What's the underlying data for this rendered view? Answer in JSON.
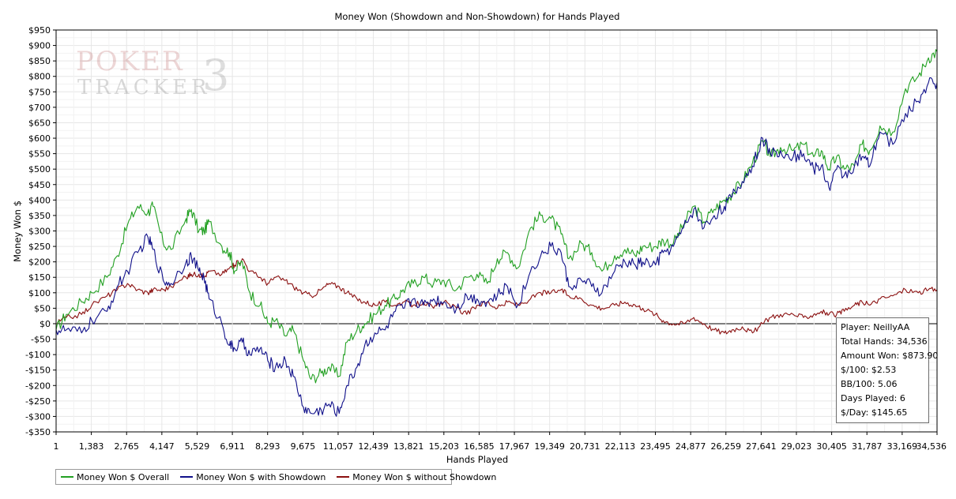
{
  "chart_data": {
    "type": "line",
    "title": "Money Won (Showdown and Non-Showdown) for Hands Played",
    "xlabel": "Hands Played",
    "ylabel": "Money Won $",
    "xlim": [
      1,
      34536
    ],
    "ylim": [
      -350,
      950
    ],
    "y_tick_step": 50,
    "x_ticks": [
      "1",
      "1,383",
      "2,765",
      "4,147",
      "5,529",
      "6,911",
      "8,293",
      "9,675",
      "11,057",
      "12,439",
      "13,821",
      "15,203",
      "16,585",
      "17,967",
      "19,349",
      "20,731",
      "22,113",
      "23,495",
      "24,877",
      "26,259",
      "27,641",
      "29,023",
      "30,405",
      "31,787",
      "33,169",
      "34,536"
    ],
    "grid": true,
    "legend_position": "bottom-left",
    "series": [
      {
        "name": "Money Won $ Overall",
        "color": "#22a022",
        "x": [
          1,
          400,
          1000,
          1400,
          2000,
          2400,
          2800,
          3200,
          3600,
          3800,
          4200,
          4500,
          5100,
          5300,
          5600,
          5800,
          6000,
          6500,
          6800,
          7000,
          7300,
          7600,
          8000,
          8300,
          8600,
          9000,
          9300,
          9700,
          10000,
          10400,
          10700,
          11100,
          11400,
          11800,
          12100,
          12500,
          12900,
          13300,
          13600,
          14000,
          14400,
          14800,
          15200,
          15700,
          16100,
          16500,
          16900,
          17300,
          17700,
          18100,
          18600,
          19000,
          19400,
          19800,
          20100,
          20600,
          21000,
          21400,
          21900,
          22300,
          22700,
          23000,
          23500,
          23800,
          24200,
          24600,
          25000,
          25400,
          25800,
          26200,
          26500,
          26900,
          27300,
          27700,
          28000,
          28400,
          28900,
          29300,
          29700,
          30000,
          30300,
          30600,
          30900,
          31300,
          31600,
          31900,
          32300,
          32800,
          33300,
          33800,
          34200,
          34536
        ],
        "y": [
          -20,
          30,
          70,
          100,
          150,
          220,
          320,
          380,
          360,
          380,
          260,
          240,
          340,
          370,
          300,
          300,
          330,
          250,
          230,
          170,
          200,
          100,
          60,
          0,
          10,
          -40,
          -20,
          -120,
          -180,
          -160,
          -140,
          -170,
          -60,
          -20,
          0,
          30,
          60,
          80,
          110,
          130,
          150,
          130,
          140,
          110,
          150,
          160,
          130,
          210,
          230,
          180,
          310,
          350,
          340,
          290,
          210,
          260,
          230,
          170,
          220,
          240,
          220,
          250,
          250,
          270,
          260,
          320,
          380,
          330,
          370,
          400,
          420,
          460,
          520,
          590,
          540,
          570,
          560,
          580,
          540,
          560,
          500,
          540,
          500,
          510,
          580,
          560,
          640,
          620,
          760,
          800,
          860,
          880
        ]
      },
      {
        "name": "Money Won $ with Showdown",
        "color": "#10108a",
        "x": [
          1,
          400,
          1000,
          1400,
          2000,
          2400,
          2800,
          3200,
          3600,
          3800,
          4200,
          4500,
          5100,
          5300,
          5600,
          5800,
          6000,
          6500,
          6800,
          7000,
          7300,
          7600,
          8000,
          8300,
          8600,
          9000,
          9300,
          9700,
          10000,
          10400,
          10700,
          11100,
          11400,
          11800,
          12100,
          12500,
          12900,
          13300,
          13600,
          14000,
          14400,
          14800,
          15200,
          15700,
          16100,
          16500,
          16900,
          17300,
          17700,
          18100,
          18600,
          19000,
          19400,
          19800,
          20100,
          20600,
          21000,
          21400,
          21900,
          22300,
          22700,
          23000,
          23500,
          23800,
          24200,
          24600,
          25000,
          25400,
          25800,
          26200,
          26500,
          26900,
          27300,
          27700,
          28000,
          28400,
          28900,
          29300,
          29700,
          30000,
          30300,
          30600,
          30900,
          31300,
          31600,
          31900,
          32300,
          32800,
          33300,
          33800,
          34200,
          34536
        ],
        "y": [
          -20,
          -20,
          -30,
          10,
          40,
          120,
          170,
          230,
          280,
          240,
          140,
          130,
          200,
          220,
          170,
          150,
          80,
          0,
          -70,
          -80,
          -60,
          -100,
          -80,
          -120,
          -140,
          -120,
          -170,
          -270,
          -290,
          -280,
          -260,
          -290,
          -200,
          -140,
          -70,
          -30,
          -20,
          40,
          50,
          80,
          60,
          80,
          70,
          50,
          90,
          80,
          70,
          90,
          120,
          60,
          170,
          220,
          250,
          230,
          120,
          140,
          120,
          100,
          170,
          200,
          190,
          200,
          190,
          230,
          250,
          310,
          370,
          310,
          350,
          380,
          410,
          460,
          510,
          600,
          550,
          560,
          540,
          550,
          500,
          510,
          440,
          500,
          480,
          510,
          540,
          510,
          620,
          580,
          680,
          720,
          780,
          780
        ]
      },
      {
        "name": "Money Won $ without Showdown",
        "color": "#8b1010",
        "x": [
          1,
          400,
          1000,
          1400,
          2000,
          2400,
          2800,
          3200,
          3600,
          3800,
          4200,
          4500,
          5100,
          5300,
          5600,
          5800,
          6000,
          6500,
          6800,
          7000,
          7300,
          7600,
          8000,
          8300,
          8600,
          9000,
          9300,
          9700,
          10000,
          10400,
          10700,
          11100,
          11400,
          11800,
          12100,
          12500,
          12900,
          13300,
          13600,
          14000,
          14400,
          14800,
          15200,
          15700,
          16100,
          16500,
          16900,
          17300,
          17700,
          18100,
          18600,
          19000,
          19400,
          19800,
          20100,
          20600,
          21000,
          21400,
          21900,
          22300,
          22700,
          23000,
          23500,
          23800,
          24200,
          24600,
          25000,
          25400,
          25800,
          26200,
          26500,
          26900,
          27300,
          27700,
          28000,
          28400,
          28900,
          29300,
          29700,
          30000,
          30300,
          30600,
          30900,
          31300,
          31600,
          31900,
          32300,
          32800,
          33300,
          33800,
          34200,
          34536
        ],
        "y": [
          0,
          20,
          30,
          60,
          90,
          110,
          130,
          110,
          100,
          110,
          110,
          120,
          150,
          160,
          160,
          150,
          170,
          160,
          180,
          190,
          210,
          170,
          150,
          130,
          150,
          140,
          120,
          100,
          90,
          110,
          130,
          120,
          100,
          80,
          70,
          60,
          70,
          60,
          70,
          60,
          70,
          50,
          70,
          50,
          30,
          60,
          70,
          50,
          70,
          60,
          80,
          100,
          100,
          110,
          90,
          80,
          60,
          50,
          60,
          70,
          60,
          50,
          30,
          10,
          0,
          0,
          20,
          0,
          -20,
          -30,
          -20,
          -10,
          -30,
          0,
          20,
          30,
          30,
          20,
          30,
          40,
          30,
          30,
          40,
          60,
          70,
          60,
          80,
          90,
          110,
          100,
          110,
          110
        ]
      }
    ]
  },
  "stats_box": {
    "player": "Player: NeillyAA",
    "total_hands": "Total Hands: 34,536",
    "amount_won": "Amount Won: $873.90",
    "per100": "$/100: $2.53",
    "bb100": "BB/100: 5.06",
    "days_played": "Days Played: 6",
    "per_day": "$/Day: $145.65"
  },
  "legend": {
    "items": [
      {
        "label": "Money Won $ Overall",
        "color": "#22a022"
      },
      {
        "label": "Money Won $ with Showdown",
        "color": "#10108a"
      },
      {
        "label": "Money Won $ without Showdown",
        "color": "#8b1010"
      }
    ]
  },
  "watermark": {
    "line1": "POKER",
    "line2": "TRACKER",
    "number": "3"
  }
}
